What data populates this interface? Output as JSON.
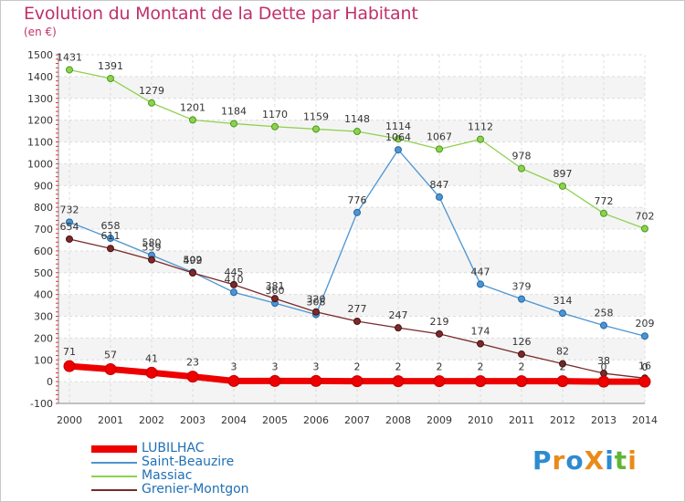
{
  "header": {
    "title": "Evolution du Montant de la Dette par Habitant",
    "unit": "(en €)"
  },
  "logo": {
    "text": "ProXiti",
    "colors": [
      "#2e8bd0",
      "#e98b1a",
      "#2e8bd0",
      "#e98b1a",
      "#2e8bd0",
      "#5fb633",
      "#e98b1a"
    ]
  },
  "chart_data": {
    "type": "line",
    "title": "Evolution du Montant de la Dette par Habitant",
    "ylabel": "(en €)",
    "xlabel": "",
    "x": [
      "2000",
      "2001",
      "2002",
      "2003",
      "2004",
      "2005",
      "2006",
      "2007",
      "2008",
      "2009",
      "2010",
      "2011",
      "2012",
      "2013",
      "2014"
    ],
    "ylim": [
      -100,
      1500
    ],
    "yticks": [
      -100,
      0,
      100,
      200,
      300,
      400,
      500,
      600,
      700,
      800,
      900,
      1000,
      1100,
      1200,
      1300,
      1400,
      1500
    ],
    "grid": true,
    "legend_position": "bottom-left",
    "series": [
      {
        "name": "LUBILHAC",
        "color": "#ee0000",
        "values": [
          71,
          57,
          41,
          23,
          3,
          3,
          3,
          2,
          2,
          2,
          2,
          2,
          2,
          0,
          0
        ],
        "labels": [
          "71",
          "57",
          "41",
          "23",
          "3",
          "3",
          "3",
          "2",
          "2",
          "2",
          "2",
          "2",
          "2",
          "0",
          "0"
        ]
      },
      {
        "name": "Saint-Beauzire",
        "color": "#4d95d1",
        "values": [
          732,
          658,
          580,
          502,
          410,
          360,
          308,
          776,
          1064,
          847,
          447,
          379,
          314,
          258,
          209
        ],
        "labels": [
          "732",
          "658",
          "580",
          "502",
          "410",
          "360",
          "308",
          "776",
          "1064",
          "847",
          "447",
          "379",
          "314",
          "258",
          "209"
        ]
      },
      {
        "name": "Massiac",
        "color": "#8fd14f",
        "values": [
          1431,
          1391,
          1279,
          1201,
          1184,
          1170,
          1159,
          1148,
          1114,
          1067,
          1112,
          978,
          897,
          772,
          702
        ],
        "labels": [
          "1431",
          "1391",
          "1279",
          "1201",
          "1184",
          "1170",
          "1159",
          "1148",
          "1114",
          "1067",
          "1112",
          "978",
          "897",
          "772",
          "702"
        ]
      },
      {
        "name": "Grenier-Montgon",
        "color": "#7a2a2a",
        "values": [
          654,
          611,
          559,
          499,
          445,
          381,
          320,
          277,
          247,
          219,
          174,
          126,
          82,
          38,
          16
        ],
        "labels": [
          "654",
          "611",
          "559",
          "499",
          "445",
          "381",
          "320",
          "277",
          "247",
          "219",
          "174",
          "126",
          "82",
          "38",
          "16"
        ]
      }
    ]
  }
}
